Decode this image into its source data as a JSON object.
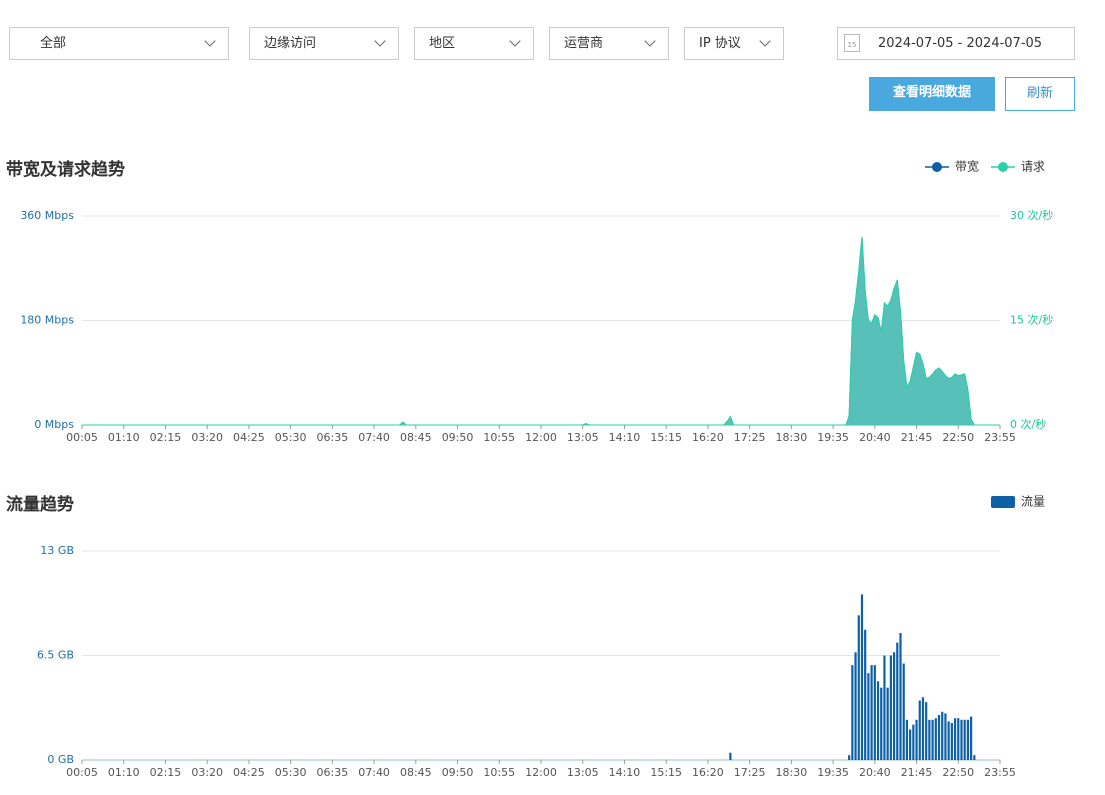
{
  "filters": [
    "全部",
    "边缘访问",
    "地区",
    "运营商",
    "IP 协议"
  ],
  "date_range": {
    "calendar_day": "15",
    "text": "2024-07-05 - 2024-07-05"
  },
  "buttons": [
    "查看明细数据",
    "刷新"
  ],
  "chart_data": [
    {
      "type": "area",
      "title": "带宽及请求趋势",
      "legend": "top-right",
      "grid": true,
      "x": [
        5,
        500,
        505,
        510,
        785,
        790,
        795,
        1005,
        1010,
        1015,
        1020,
        1195,
        1200,
        1205,
        1210,
        1215,
        1220,
        1225,
        1230,
        1235,
        1240,
        1245,
        1250,
        1255,
        1260,
        1265,
        1270,
        1275,
        1280,
        1285,
        1290,
        1295,
        1300,
        1305,
        1310,
        1315,
        1320,
        1325,
        1330,
        1335,
        1340,
        1345,
        1350,
        1355,
        1360,
        1365,
        1370,
        1375,
        1380,
        1385,
        1390,
        1395,
        1435
      ],
      "series": [
        {
          "name": "带宽",
          "color": "#0d5fa6",
          "values": [
            0,
            0,
            5,
            0,
            0,
            2,
            0,
            0,
            6,
            14,
            0,
            0,
            15,
            180,
            215,
            265,
            324,
            230,
            180,
            175,
            190,
            185,
            160,
            210,
            205,
            215,
            235,
            250,
            195,
            110,
            65,
            75,
            100,
            125,
            122,
            105,
            80,
            82,
            88,
            95,
            98,
            92,
            85,
            80,
            82,
            88,
            85,
            86,
            88,
            60,
            10,
            0,
            0
          ]
        },
        {
          "name": "请求",
          "color": "#2dcfa6",
          "axis": "y2",
          "values": [
            0,
            0,
            0.4,
            0,
            0,
            0.2,
            0,
            0,
            0.5,
            1.2,
            0,
            0,
            1.3,
            15,
            17.9,
            22.1,
            27,
            19.2,
            15,
            14.6,
            15.8,
            15.4,
            13.3,
            17.5,
            17.1,
            17.9,
            19.6,
            20.8,
            16.3,
            9.2,
            5.4,
            6.3,
            8.3,
            10.4,
            10.2,
            8.8,
            6.7,
            6.8,
            7.3,
            7.9,
            8.2,
            7.7,
            7.1,
            6.7,
            6.8,
            7.3,
            7.1,
            7.2,
            7.3,
            5,
            0.8,
            0,
            0
          ]
        }
      ],
      "xlim": [
        5,
        1435
      ],
      "xticks": [
        {
          "value": 5,
          "label": "00:05"
        },
        {
          "value": 70,
          "label": "01:10"
        },
        {
          "value": 135,
          "label": "02:15"
        },
        {
          "value": 200,
          "label": "03:20"
        },
        {
          "value": 265,
          "label": "04:25"
        },
        {
          "value": 330,
          "label": "05:30"
        },
        {
          "value": 395,
          "label": "06:35"
        },
        {
          "value": 460,
          "label": "07:40"
        },
        {
          "value": 525,
          "label": "08:45"
        },
        {
          "value": 590,
          "label": "09:50"
        },
        {
          "value": 655,
          "label": "10:55"
        },
        {
          "value": 720,
          "label": "12:00"
        },
        {
          "value": 785,
          "label": "13:05"
        },
        {
          "value": 850,
          "label": "14:10"
        },
        {
          "value": 915,
          "label": "15:15"
        },
        {
          "value": 980,
          "label": "16:20"
        },
        {
          "value": 1045,
          "label": "17:25"
        },
        {
          "value": 1110,
          "label": "18:30"
        },
        {
          "value": 1175,
          "label": "19:35"
        },
        {
          "value": 1240,
          "label": "20:40"
        },
        {
          "value": 1305,
          "label": "21:45"
        },
        {
          "value": 1370,
          "label": "22:50"
        },
        {
          "value": 1435,
          "label": "23:55"
        }
      ],
      "ylim": [
        0,
        360
      ],
      "yticks": [
        {
          "value": 0,
          "label": "0 Mbps"
        },
        {
          "value": 180,
          "label": "180 Mbps"
        },
        {
          "value": 360,
          "label": "360 Mbps"
        }
      ],
      "y2lim": [
        0,
        30
      ],
      "y2ticks": [
        {
          "value": 0,
          "label": "0 次/秒"
        },
        {
          "value": 15,
          "label": "15 次/秒"
        },
        {
          "value": 30,
          "label": "30 次/秒"
        }
      ]
    },
    {
      "type": "bar",
      "title": "流量趋势",
      "legend": "top-right",
      "grid": true,
      "x": [
        1015,
        1200,
        1205,
        1210,
        1215,
        1220,
        1225,
        1230,
        1235,
        1240,
        1245,
        1250,
        1255,
        1260,
        1265,
        1270,
        1275,
        1280,
        1285,
        1290,
        1295,
        1300,
        1305,
        1310,
        1315,
        1320,
        1325,
        1330,
        1335,
        1340,
        1345,
        1350,
        1355,
        1360,
        1365,
        1370,
        1375,
        1380,
        1385,
        1390,
        1395
      ],
      "series": [
        {
          "name": "流量",
          "color": "#0d5fa6",
          "values": [
            0.45,
            0.3,
            5.9,
            6.7,
            9,
            10.3,
            8.1,
            5.4,
            5.9,
            5.9,
            4.9,
            4.5,
            6.5,
            4.5,
            6.5,
            6.7,
            7.3,
            7.9,
            6,
            2.5,
            1.9,
            2.2,
            2.5,
            3.7,
            3.9,
            3.6,
            2.5,
            2.5,
            2.6,
            2.8,
            3,
            2.9,
            2.4,
            2.3,
            2.6,
            2.6,
            2.5,
            2.5,
            2.5,
            2.7,
            0.3
          ]
        }
      ],
      "xlim": [
        5,
        1435
      ],
      "xticks": [
        {
          "value": 5,
          "label": "00:05"
        },
        {
          "value": 70,
          "label": "01:10"
        },
        {
          "value": 135,
          "label": "02:15"
        },
        {
          "value": 200,
          "label": "03:20"
        },
        {
          "value": 265,
          "label": "04:25"
        },
        {
          "value": 330,
          "label": "05:30"
        },
        {
          "value": 395,
          "label": "06:35"
        },
        {
          "value": 460,
          "label": "07:40"
        },
        {
          "value": 525,
          "label": "08:45"
        },
        {
          "value": 590,
          "label": "09:50"
        },
        {
          "value": 655,
          "label": "10:55"
        },
        {
          "value": 720,
          "label": "12:00"
        },
        {
          "value": 785,
          "label": "13:05"
        },
        {
          "value": 850,
          "label": "14:10"
        },
        {
          "value": 915,
          "label": "15:15"
        },
        {
          "value": 980,
          "label": "16:20"
        },
        {
          "value": 1045,
          "label": "17:25"
        },
        {
          "value": 1110,
          "label": "18:30"
        },
        {
          "value": 1175,
          "label": "19:35"
        },
        {
          "value": 1240,
          "label": "20:40"
        },
        {
          "value": 1305,
          "label": "21:45"
        },
        {
          "value": 1370,
          "label": "22:50"
        },
        {
          "value": 1435,
          "label": "23:55"
        }
      ],
      "ylim": [
        0,
        13
      ],
      "yticks": [
        {
          "value": 0,
          "label": "0 GB"
        },
        {
          "value": 6.5,
          "label": "6.5 GB"
        },
        {
          "value": 13,
          "label": "13 GB"
        }
      ]
    }
  ]
}
